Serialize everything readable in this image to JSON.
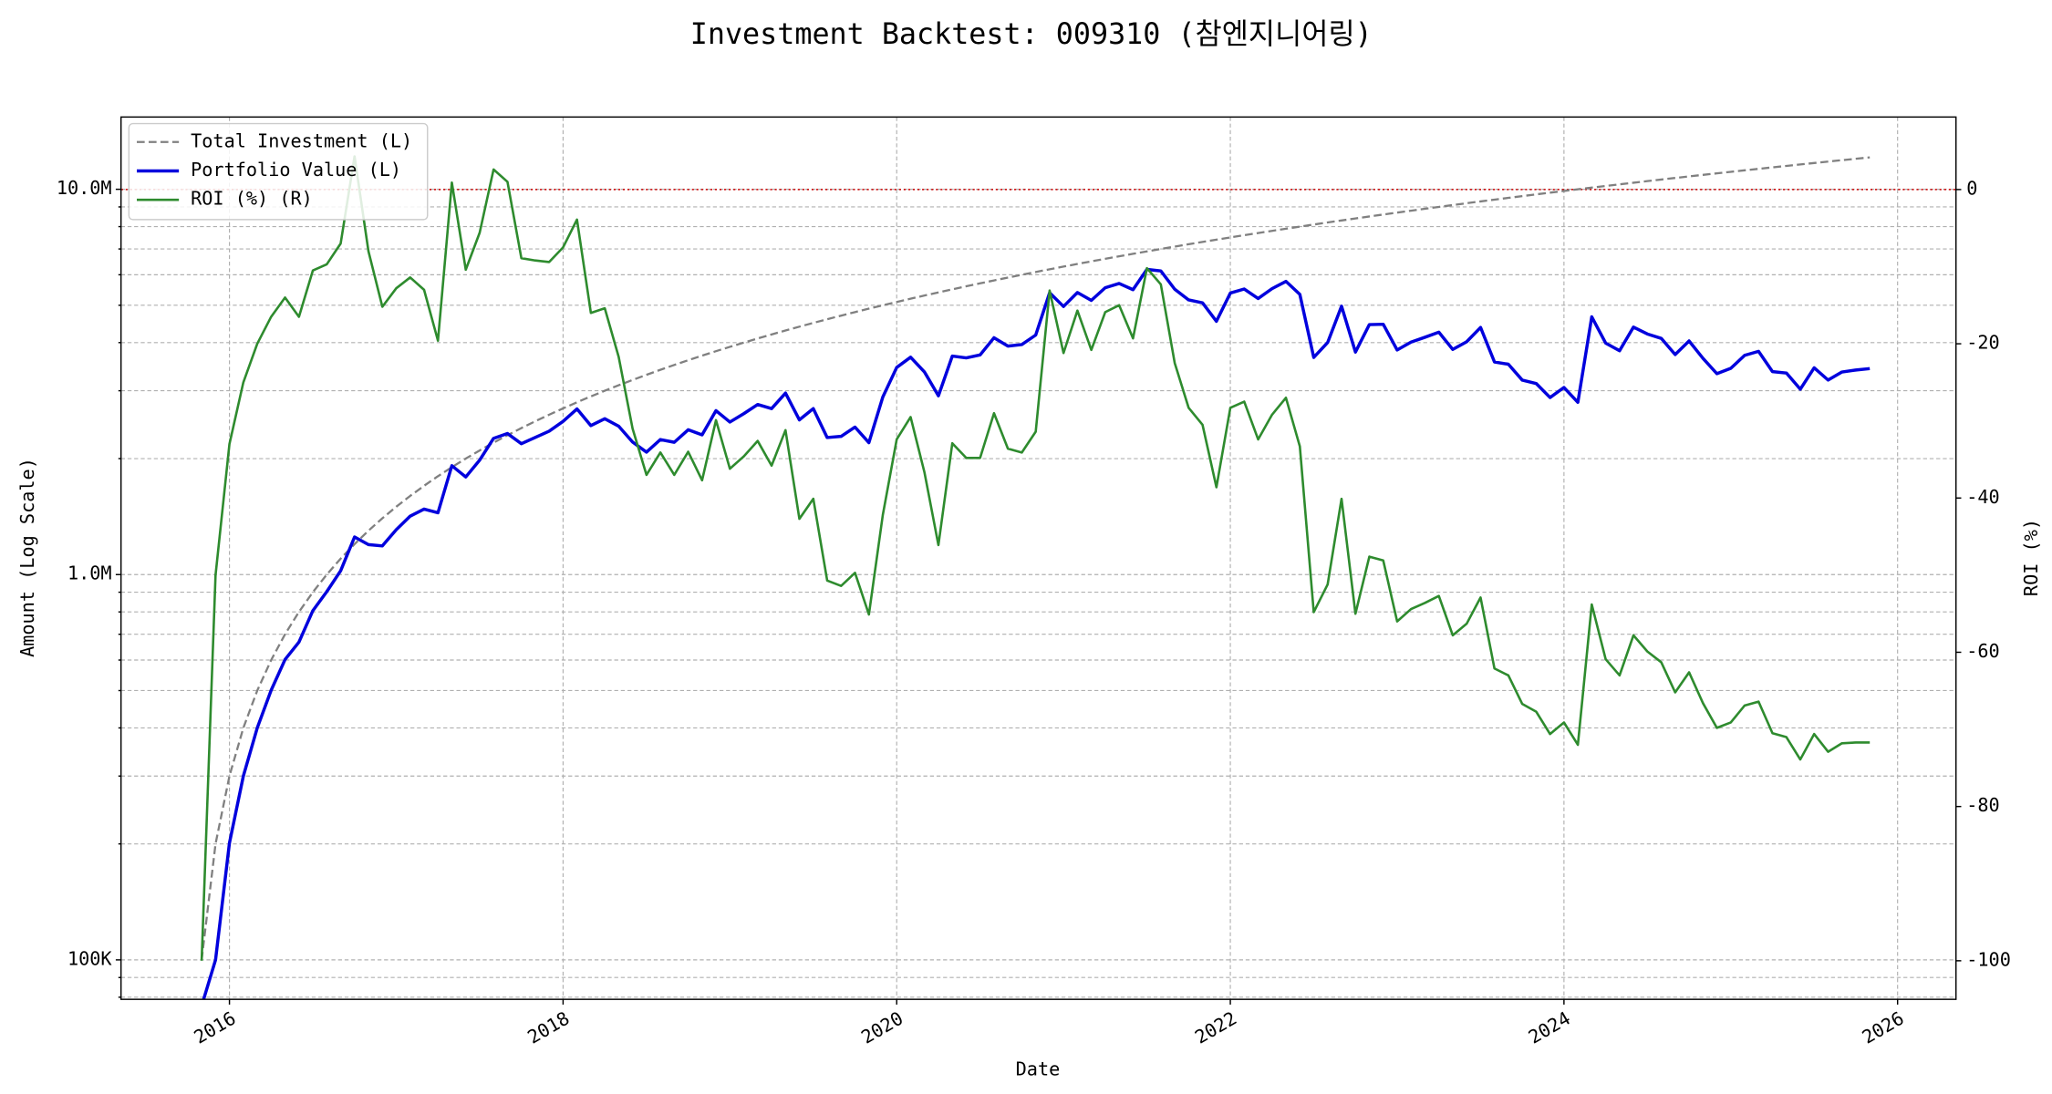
{
  "chart_data": {
    "type": "line",
    "title": "Investment Backtest: 009310 (참엔지니어링)",
    "xlabel": "Date",
    "ylabel": "Amount (Log Scale)",
    "y2label": "ROI (%)",
    "yscale": "log",
    "grid": true,
    "legend": "upper left",
    "xlim": [
      2015.35,
      2026.35
    ],
    "xticks": [
      2016,
      2018,
      2020,
      2022,
      2024,
      2026
    ],
    "ylim": [
      79000,
      15400000
    ],
    "yticks": [
      {
        "value": 100000,
        "label": "100K"
      },
      {
        "value": 1000000,
        "label": "1.0M"
      },
      {
        "value": 10000000,
        "label": "10.0M"
      }
    ],
    "yminorticks": [
      80000,
      90000,
      200000,
      300000,
      400000,
      500000,
      600000,
      700000,
      800000,
      900000,
      2000000,
      3000000,
      4000000,
      5000000,
      6000000,
      7000000,
      8000000,
      9000000
    ],
    "y2lim": [
      -105,
      9.4
    ],
    "y2ticks": [
      -100,
      -80,
      -60,
      -40,
      -20,
      0
    ],
    "y2refline": {
      "value": 0,
      "color": "#cc0000"
    },
    "x": [
      "2015-11",
      "2015-12",
      "2016-01",
      "2016-02",
      "2016-03",
      "2016-04",
      "2016-05",
      "2016-06",
      "2016-07",
      "2016-08",
      "2016-09",
      "2016-10",
      "2016-11",
      "2016-12",
      "2017-01",
      "2017-02",
      "2017-03",
      "2017-04",
      "2017-05",
      "2017-06",
      "2017-07",
      "2017-08",
      "2017-09",
      "2017-10",
      "2017-11",
      "2017-12",
      "2018-01",
      "2018-02",
      "2018-03",
      "2018-04",
      "2018-05",
      "2018-06",
      "2018-07",
      "2018-08",
      "2018-09",
      "2018-10",
      "2018-11",
      "2018-12",
      "2019-01",
      "2019-02",
      "2019-03",
      "2019-04",
      "2019-05",
      "2019-06",
      "2019-07",
      "2019-08",
      "2019-09",
      "2019-10",
      "2019-11",
      "2019-12",
      "2020-01",
      "2020-02",
      "2020-03",
      "2020-04",
      "2020-05",
      "2020-06",
      "2020-07",
      "2020-08",
      "2020-09",
      "2020-10",
      "2020-11",
      "2020-12",
      "2021-01",
      "2021-02",
      "2021-03",
      "2021-04",
      "2021-05",
      "2021-06",
      "2021-07",
      "2021-08",
      "2021-09",
      "2021-10",
      "2021-11",
      "2021-12",
      "2022-01",
      "2022-02",
      "2022-03",
      "2022-04",
      "2022-05",
      "2022-06",
      "2022-07",
      "2022-08",
      "2022-09",
      "2022-10",
      "2022-11",
      "2022-12",
      "2023-01",
      "2023-02",
      "2023-03",
      "2023-04",
      "2023-05",
      "2023-06",
      "2023-07",
      "2023-08",
      "2023-09",
      "2023-10",
      "2023-11",
      "2023-12",
      "2024-01",
      "2024-02",
      "2024-03",
      "2024-04",
      "2024-05",
      "2024-06",
      "2024-07",
      "2024-08",
      "2024-09",
      "2024-10",
      "2024-11",
      "2024-12",
      "2025-01",
      "2025-02",
      "2025-03",
      "2025-04",
      "2025-05",
      "2025-06",
      "2025-07",
      "2025-08",
      "2025-09",
      "2025-10",
      "2025-11"
    ],
    "series": [
      {
        "name": "Total Investment (L)",
        "color": "#808080",
        "dash": "dashed",
        "axis": "y",
        "values": [
          100000,
          200000,
          300000,
          400000,
          500000,
          600000,
          700000,
          800000,
          900000,
          1000000,
          1100000,
          1200000,
          1300000,
          1400000,
          1500000,
          1600000,
          1700000,
          1800000,
          1900000,
          2000000,
          2100000,
          2200000,
          2300000,
          2400000,
          2500000,
          2600000,
          2700000,
          2800000,
          2900000,
          3000000,
          3100000,
          3200000,
          3300000,
          3400000,
          3500000,
          3600000,
          3700000,
          3800000,
          3900000,
          4000000,
          4100000,
          4200000,
          4300000,
          4400000,
          4500000,
          4600000,
          4700000,
          4800000,
          4900000,
          5000000,
          5100000,
          5200000,
          5300000,
          5400000,
          5500000,
          5600000,
          5700000,
          5800000,
          5900000,
          6000000,
          6100000,
          6200000,
          6300000,
          6400000,
          6500000,
          6600000,
          6700000,
          6800000,
          6900000,
          7000000,
          7100000,
          7200000,
          7300000,
          7400000,
          7500000,
          7600000,
          7700000,
          7800000,
          7900000,
          8000000,
          8100000,
          8200000,
          8300000,
          8400000,
          8500000,
          8600000,
          8700000,
          8800000,
          8900000,
          9000000,
          9100000,
          9200000,
          9300000,
          9400000,
          9500000,
          9600000,
          9700000,
          9800000,
          9900000,
          10000000,
          10100000,
          10200000,
          10300000,
          10400000,
          10500000,
          10600000,
          10700000,
          10800000,
          10900000,
          11000000,
          11100000,
          11200000,
          11300000,
          11400000,
          11500000,
          11600000,
          11700000,
          11800000,
          11900000,
          12000000,
          12100000
        ]
      },
      {
        "name": "Portfolio Value (L)",
        "color": "#0000dd",
        "axis": "y",
        "values": [
          0,
          100000,
          201000,
          300000,
          400000,
          501000,
          602000,
          668000,
          806000,
          903000,
          1023000,
          1252000,
          1196000,
          1187000,
          1308000,
          1418000,
          1479000,
          1447000,
          1917000,
          1792000,
          1982000,
          2257000,
          2323000,
          2186000,
          2270000,
          2356000,
          2498000,
          2691000,
          2436000,
          2538000,
          2427000,
          2208000,
          2079000,
          2241000,
          2205000,
          2376000,
          2305000,
          2664000,
          2488000,
          2616000,
          2763000,
          2696000,
          2958000,
          2521000,
          2696000,
          2268000,
          2284000,
          2414000,
          2200000,
          2890000,
          3448000,
          3666000,
          3355000,
          2911000,
          3691000,
          3651000,
          3716000,
          4118000,
          3918000,
          3954000,
          4185000,
          5388000,
          4964000,
          5395000,
          5148000,
          5551000,
          5695000,
          5488000,
          6196000,
          6139000,
          5503000,
          5162000,
          5074000,
          4544000,
          5378000,
          5510000,
          5205000,
          5522000,
          5767000,
          5336000,
          3661000,
          4002000,
          4972000,
          3780000,
          4454000,
          4463000,
          3828000,
          4013000,
          4130000,
          4257000,
          3840000,
          4020000,
          4380000,
          3563000,
          3515000,
          3197000,
          3133000,
          2881000,
          3059000,
          2800000,
          4666000,
          3988000,
          3811000,
          4389000,
          4211000,
          4102000,
          3724000,
          4039000,
          3641000,
          3322000,
          3430000,
          3707000,
          3797000,
          3363000,
          3335000,
          3028000,
          3440000,
          3198000,
          3356000,
          3396000,
          3424000
        ]
      },
      {
        "name": "ROI (%) (R)",
        "color": "#2e8b2e",
        "axis": "y2",
        "values": [
          -100,
          -50,
          -33,
          -25,
          -20,
          -16.5,
          -14,
          -16.5,
          -10.5,
          -9.7,
          -7,
          4.3,
          -8,
          -15.2,
          -12.8,
          -11.4,
          -13,
          -19.6,
          0.9,
          -10.4,
          -5.6,
          2.6,
          1,
          -8.9,
          -9.2,
          -9.4,
          -7.5,
          -3.9,
          -16,
          -15.4,
          -21.7,
          -31,
          -37,
          -34.1,
          -37,
          -34,
          -37.7,
          -29.9,
          -36.2,
          -34.6,
          -32.6,
          -35.8,
          -31.2,
          -42.7,
          -40.1,
          -50.7,
          -51.4,
          -49.7,
          -55.1,
          -42.2,
          -32.4,
          -29.5,
          -36.7,
          -46.1,
          -32.9,
          -34.8,
          -34.8,
          -29,
          -33.6,
          -34.1,
          -31.4,
          -13.1,
          -21.2,
          -15.7,
          -20.8,
          -15.9,
          -15,
          -19.3,
          -10.2,
          -12.3,
          -22.5,
          -28.3,
          -30.5,
          -38.6,
          -28.3,
          -27.5,
          -32.4,
          -29.2,
          -27,
          -33.3,
          -54.8,
          -51.2,
          -40.1,
          -55,
          -47.6,
          -48.1,
          -56,
          -54.4,
          -53.6,
          -52.7,
          -57.8,
          -56.3,
          -52.9,
          -62.1,
          -63,
          -66.7,
          -67.7,
          -70.6,
          -69.1,
          -72,
          -53.8,
          -60.9,
          -63,
          -57.8,
          -59.9,
          -61.3,
          -65.2,
          -62.6,
          -66.6,
          -69.8,
          -69.1,
          -66.9,
          -66.4,
          -70.5,
          -71,
          -73.9,
          -70.6,
          -72.9,
          -71.8,
          -71.7,
          -71.7
        ]
      }
    ]
  }
}
